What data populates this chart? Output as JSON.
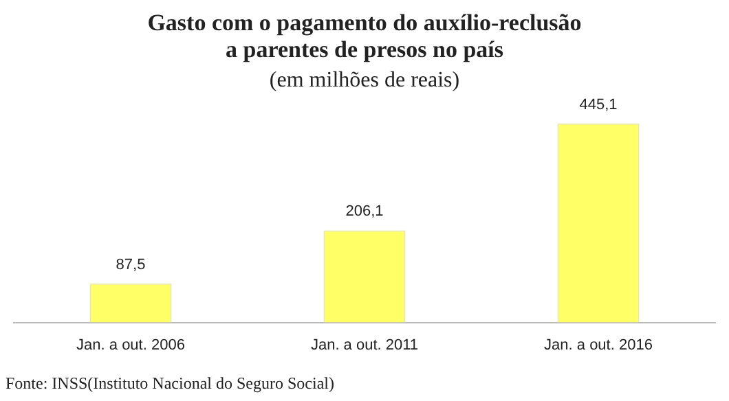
{
  "chart_data": {
    "type": "bar",
    "title": [
      "Gasto com o pagamento do auxílio-reclusão",
      "a parentes de presos no país"
    ],
    "subtitle": "(em milhões de reais)",
    "categories": [
      "Jan. a out. 2006",
      "Jan. a out. 2011",
      "Jan. a out. 2016"
    ],
    "values": [
      87.5,
      206.1,
      445.1
    ],
    "value_labels": [
      "87,5",
      "206,1",
      "445,1"
    ],
    "color": "#ffff66",
    "grid": false,
    "legend": false,
    "annotations": [
      "Fonte: INSS(Instituto Nacional do Seguro Social)"
    ]
  }
}
